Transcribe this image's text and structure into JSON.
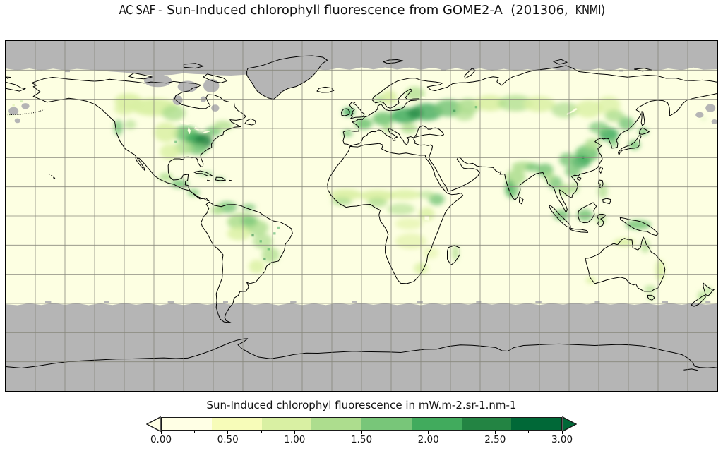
{
  "figure": {
    "title_part1": "AC SAF -",
    "title_part2": "Sun-Induced chlorophyll fluorescence from GOME2-A  (201306, ",
    "title_part3": "KNMI)",
    "background": "#ffffff"
  },
  "map": {
    "ocean_color": "#fdffe2",
    "no_data_color": "#b5b5b5",
    "coastline_color": "#000000",
    "grid_color": "#85857a",
    "frame_color": "#000000"
  },
  "colorbar": {
    "label": "Sun-Induced chlorophyl fluorescence in mW.m-2.sr-1.nm-1",
    "tick_labels": [
      "0.00",
      "0.50",
      "1.00",
      "1.50",
      "2.00",
      "2.50",
      "3.00"
    ],
    "tick_values": [
      0,
      0.5,
      1,
      1.5,
      2,
      2.5,
      3
    ],
    "minor_step": 0.25,
    "range": [
      0,
      3
    ],
    "colors": [
      "#ffffe5",
      "#f7fcb9",
      "#d9f0a3",
      "#addd8e",
      "#78c679",
      "#41ab5d",
      "#238443",
      "#006837"
    ],
    "under_color": "#ffffe5",
    "over_color": "#006837"
  },
  "chart_data": {
    "type": "heatmap",
    "title": "AC SAF -Sun-Induced chlorophyll fluorescence from GOME2-A (201306, KNMI)",
    "colorbar_label": "Sun-Induced chlorophyl fluorescence in mW.m-2.sr-1.nm-1",
    "instrument": "GOME2-A",
    "period": "201306",
    "source": "KNMI",
    "projection": "equirectangular",
    "lon_range": [
      -180,
      180
    ],
    "lat_range": [
      -90,
      90
    ],
    "grid_spacing_deg": 15,
    "value_range": [
      0,
      3
    ],
    "units": "mW.m-2.sr-1.nm-1",
    "legend_position": "bottom",
    "colormap": {
      "name": "YlGn (8 discrete levels)",
      "level_edges": [
        0,
        0.375,
        0.75,
        1.125,
        1.5,
        1.875,
        2.25,
        2.625,
        3
      ],
      "colors": [
        "#ffffe5",
        "#f7fcb9",
        "#d9f0a3",
        "#addd8e",
        "#78c679",
        "#41ab5d",
        "#238443",
        "#006837"
      ],
      "under": "#ffffe5",
      "over": "#006837",
      "no_data": "#b5b5b5"
    },
    "no_data_regions": [
      "poleward of ~75N (ragged edge)",
      "poleward of ~45S (polar night, ragged edge)",
      "Greenland ice sheet",
      "Canadian Arctic Archipelago patches",
      "NW Pacific speckle patches"
    ],
    "regional_values_mW_m2_sr_nm": [
      {
        "region": "Eastern United States / Great Lakes",
        "value": "1.5-3.0"
      },
      {
        "region": "Boreal Canada",
        "value": "0.5-1.0"
      },
      {
        "region": "Central-Eastern Europe to western Russia",
        "value": "1.5-2.5"
      },
      {
        "region": "Scandinavia",
        "value": "0.5-1.0"
      },
      {
        "region": "Siberian taiga belt",
        "value": "0.5-1.5"
      },
      {
        "region": "Northeast China / Korea / Japan",
        "value": "1.5-2.5"
      },
      {
        "region": "Southern China / Southeast Asia",
        "value": "1.0-2.0"
      },
      {
        "region": "India",
        "value": "0.75-1.5"
      },
      {
        "region": "Indonesia / New Guinea",
        "value": "1.0-1.5"
      },
      {
        "region": "Amazon basin",
        "value": "0.75-1.5"
      },
      {
        "region": "Southeastern Brazil",
        "value": "0.75-1.25"
      },
      {
        "region": "Sahel belt",
        "value": "0.5-1.0"
      },
      {
        "region": "Equatorial Africa / Ethiopian highlands",
        "value": "0.75-1.5"
      },
      {
        "region": "Southern Africa",
        "value": "0.25-0.75"
      },
      {
        "region": "Northern and eastern Australia coasts",
        "value": "0.5-1.0"
      },
      {
        "region": "Deserts (Sahara, Arabia, central Australia)",
        "value": "0.0-0.25"
      },
      {
        "region": "Oceans",
        "value": "0.0-0.25"
      }
    ]
  }
}
